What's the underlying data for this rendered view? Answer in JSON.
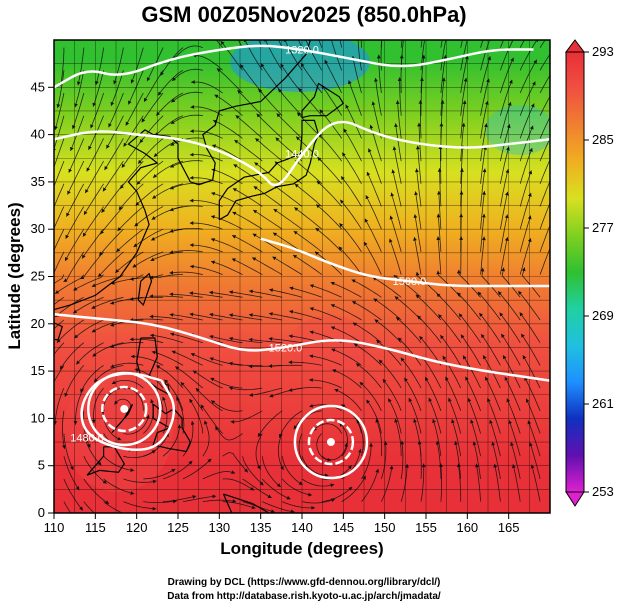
{
  "chart_data": {
    "type": "heatmap",
    "title": "GSM 00Z05Nov2025 (850.0hPa)",
    "xlabel": "Longitude (degrees)",
    "ylabel": "Latitude  (degrees)",
    "xlim": [
      110,
      170
    ],
    "ylim": [
      0,
      50
    ],
    "xticks": [
      "110",
      "115",
      "120",
      "125",
      "130",
      "135",
      "140",
      "145",
      "150",
      "155",
      "160",
      "165"
    ],
    "yticks": [
      "0",
      "5",
      "10",
      "15",
      "20",
      "25",
      "30",
      "35",
      "40",
      "45"
    ],
    "grid": true,
    "colorbar": {
      "range": [
        253,
        293
      ],
      "ticks": [
        "253",
        "261",
        "269",
        "277",
        "285",
        "293"
      ],
      "colors": [
        "#e020d0",
        "#6010b0",
        "#1030c0",
        "#1e90ff",
        "#20c0e0",
        "#20d0a0",
        "#30c030",
        "#80d020",
        "#d8e020",
        "#f0b020",
        "#f08030",
        "#f05040",
        "#e83038"
      ],
      "placement": "right"
    },
    "temperature_zones_lat": [
      {
        "lat": 48,
        "temp": 272
      },
      {
        "lat": 42,
        "temp": 276
      },
      {
        "lat": 36,
        "temp": 279
      },
      {
        "lat": 30,
        "temp": 283
      },
      {
        "lat": 25,
        "temp": 287
      },
      {
        "lat": 18,
        "temp": 290
      },
      {
        "lat": 5,
        "temp": 292
      }
    ],
    "contours": [
      {
        "label": "1320.0",
        "points": [
          [
            110,
            45
          ],
          [
            114,
            47
          ],
          [
            118,
            46
          ],
          [
            124,
            48
          ],
          [
            130,
            49
          ],
          [
            135,
            49.5
          ],
          [
            140,
            49
          ],
          [
            146,
            48
          ],
          [
            152,
            47
          ],
          [
            158,
            48
          ],
          [
            163,
            49
          ],
          [
            168,
            49
          ]
        ]
      },
      {
        "label": "1440.0",
        "points": [
          [
            110,
            39.5
          ],
          [
            115,
            40.5
          ],
          [
            120,
            40
          ],
          [
            126,
            39.5
          ],
          [
            131,
            38
          ],
          [
            135,
            36
          ],
          [
            137,
            34
          ],
          [
            140,
            38
          ],
          [
            144,
            42
          ],
          [
            149,
            40
          ],
          [
            154,
            39
          ],
          [
            160,
            38.5
          ],
          [
            165,
            39
          ],
          [
            170,
            39.5
          ]
        ]
      },
      {
        "label": "1500.0",
        "points": [
          [
            135,
            29
          ],
          [
            139,
            28
          ],
          [
            143,
            26.5
          ],
          [
            148,
            25
          ],
          [
            153,
            24.5
          ],
          [
            158,
            24
          ],
          [
            163,
            24
          ],
          [
            170,
            24
          ]
        ]
      },
      {
        "label": "1520.0",
        "points": [
          [
            110,
            21
          ],
          [
            116,
            20.5
          ],
          [
            122,
            20
          ],
          [
            128,
            18.5
          ],
          [
            133,
            17
          ],
          [
            138,
            17.5
          ],
          [
            144,
            18.5
          ],
          [
            150,
            17.5
          ],
          [
            156,
            16
          ],
          [
            162,
            15
          ],
          [
            170,
            14
          ]
        ]
      },
      {
        "label": "1480.0",
        "points": [
          [
            123,
            14
          ],
          [
            125,
            11
          ],
          [
            123,
            7
          ],
          [
            119,
            6.5
          ],
          [
            114,
            8
          ],
          [
            113,
            11
          ],
          [
            115,
            14
          ],
          [
            119,
            15
          ],
          [
            123,
            14
          ]
        ]
      }
    ],
    "low_centers": [
      {
        "lon": 118.5,
        "lat": 11
      },
      {
        "lon": 143.5,
        "lat": 7.5
      }
    ]
  },
  "footer": {
    "line1": "Drawing by DCL (https://www.gfd-dennou.org/library/dcl/)",
    "line2": "Data from http://database.rish.kyoto-u.ac.jp/arch/jmadata/"
  }
}
